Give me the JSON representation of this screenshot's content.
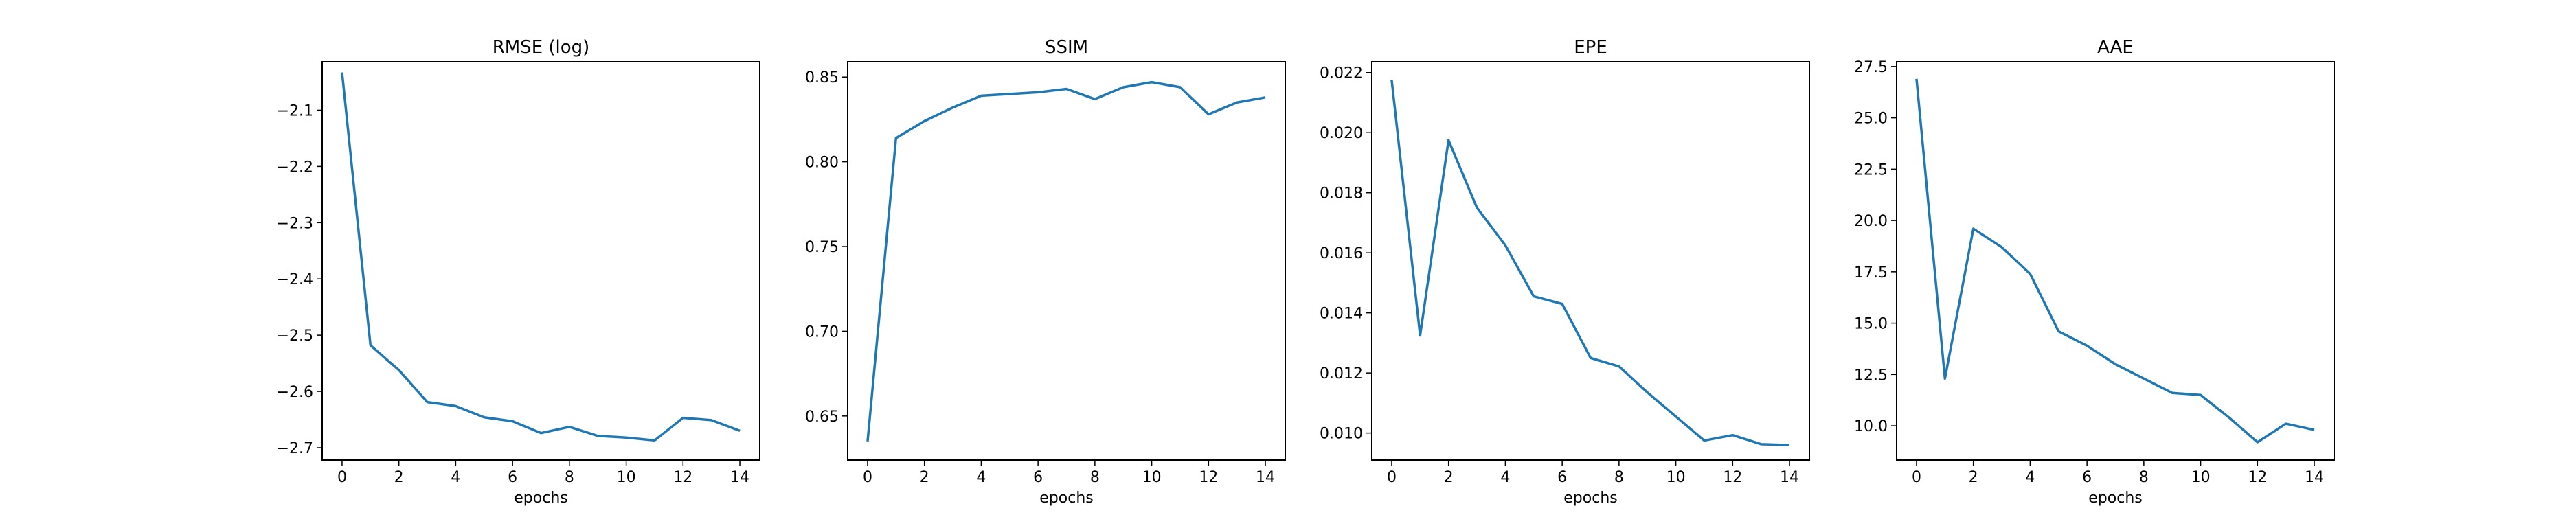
{
  "chart_data": [
    {
      "type": "line",
      "title": "RMSE (log)",
      "xlabel": "epochs",
      "ylabel": "",
      "xlim": [
        -0.7,
        14.7
      ],
      "ylim": [
        -2.722,
        -2.014
      ],
      "xticks": [
        0,
        2,
        4,
        6,
        8,
        10,
        12,
        14
      ],
      "xtick_labels": [
        "0",
        "2",
        "4",
        "6",
        "8",
        "10",
        "12",
        "14"
      ],
      "yticks": [
        -2.1,
        -2.2,
        -2.3,
        -2.4,
        -2.5,
        -2.6,
        -2.7
      ],
      "ytick_labels": [
        "−2.1",
        "−2.2",
        "−2.3",
        "−2.4",
        "−2.5",
        "−2.6",
        "−2.7"
      ],
      "color": "#1f77b4",
      "x": [
        0,
        1,
        2,
        3,
        4,
        5,
        6,
        7,
        8,
        9,
        10,
        11,
        12,
        13,
        14
      ],
      "y": [
        -2.033,
        -2.518,
        -2.562,
        -2.619,
        -2.626,
        -2.646,
        -2.653,
        -2.674,
        -2.663,
        -2.679,
        -2.682,
        -2.687,
        -2.647,
        -2.651,
        -2.67
      ]
    },
    {
      "type": "line",
      "title": "SSIM",
      "xlabel": "epochs",
      "ylabel": "",
      "xlim": [
        -0.7,
        14.7
      ],
      "ylim": [
        0.624,
        0.859
      ],
      "xticks": [
        0,
        2,
        4,
        6,
        8,
        10,
        12,
        14
      ],
      "xtick_labels": [
        "0",
        "2",
        "4",
        "6",
        "8",
        "10",
        "12",
        "14"
      ],
      "yticks": [
        0.65,
        0.7,
        0.75,
        0.8,
        0.85
      ],
      "ytick_labels": [
        "0.65",
        "0.70",
        "0.75",
        "0.80",
        "0.85"
      ],
      "color": "#1f77b4",
      "x": [
        0,
        1,
        2,
        3,
        4,
        5,
        6,
        7,
        8,
        9,
        10,
        11,
        12,
        13,
        14
      ],
      "y": [
        0.635,
        0.814,
        0.824,
        0.832,
        0.839,
        0.84,
        0.841,
        0.843,
        0.837,
        0.844,
        0.847,
        0.844,
        0.828,
        0.835,
        0.838
      ]
    },
    {
      "type": "line",
      "title": "EPE",
      "xlabel": "epochs",
      "ylabel": "",
      "xlim": [
        -0.7,
        14.7
      ],
      "ylim": [
        0.0091,
        0.02236
      ],
      "xticks": [
        0,
        2,
        4,
        6,
        8,
        10,
        12,
        14
      ],
      "xtick_labels": [
        "0",
        "2",
        "4",
        "6",
        "8",
        "10",
        "12",
        "14"
      ],
      "yticks": [
        0.01,
        0.012,
        0.014,
        0.016,
        0.018,
        0.02,
        0.022
      ],
      "ytick_labels": [
        "0.010",
        "0.012",
        "0.014",
        "0.016",
        "0.018",
        "0.020",
        "0.022"
      ],
      "color": "#1f77b4",
      "x": [
        0,
        1,
        2,
        3,
        4,
        5,
        6,
        7,
        8,
        9,
        10,
        11,
        12,
        13,
        14
      ],
      "y": [
        0.02175,
        0.01325,
        0.01975,
        0.0175,
        0.01625,
        0.01455,
        0.0143,
        0.0125,
        0.01222,
        0.01135,
        0.01055,
        0.00975,
        0.00993,
        0.00963,
        0.0096
      ]
    },
    {
      "type": "line",
      "title": "AAE",
      "xlabel": "epochs",
      "ylabel": "",
      "xlim": [
        -0.7,
        14.7
      ],
      "ylim": [
        8.33,
        27.73
      ],
      "xticks": [
        0,
        2,
        4,
        6,
        8,
        10,
        12,
        14
      ],
      "xtick_labels": [
        "0",
        "2",
        "4",
        "6",
        "8",
        "10",
        "12",
        "14"
      ],
      "yticks": [
        10.0,
        12.5,
        15.0,
        17.5,
        20.0,
        22.5,
        25.0,
        27.5
      ],
      "ytick_labels": [
        "10.0",
        "12.5",
        "15.0",
        "17.5",
        "20.0",
        "22.5",
        "25.0",
        "27.5"
      ],
      "color": "#1f77b4",
      "x": [
        0,
        1,
        2,
        3,
        4,
        5,
        6,
        7,
        8,
        9,
        10,
        11,
        12,
        13,
        14
      ],
      "y": [
        26.9,
        12.3,
        19.6,
        18.7,
        17.4,
        14.6,
        13.9,
        13.0,
        12.3,
        11.6,
        11.5,
        10.4,
        9.2,
        10.1,
        9.8
      ]
    }
  ]
}
